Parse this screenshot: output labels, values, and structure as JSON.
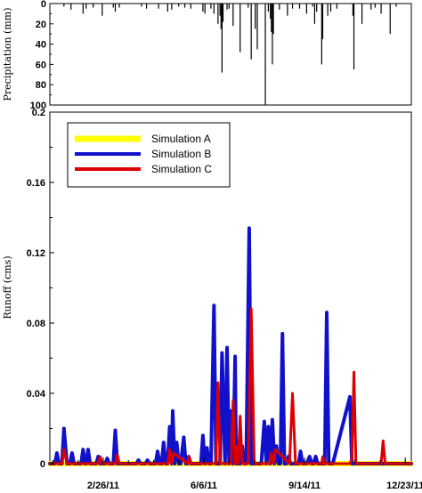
{
  "chart_data": [
    {
      "type": "bar",
      "ylabel": "Precipitation (mm)",
      "ylim": [
        100,
        0
      ],
      "y_reversed": true,
      "yticks": [
        0,
        20,
        40,
        60,
        80,
        100
      ],
      "grid": false,
      "x": [
        "2011-01-18",
        "2011-01-25",
        "2011-02-06",
        "2011-02-09",
        "2011-02-16",
        "2011-02-25",
        "2011-03-08",
        "2011-03-10",
        "2011-03-14",
        "2011-04-05",
        "2011-04-10",
        "2011-04-22",
        "2011-05-01",
        "2011-05-05",
        "2011-05-12",
        "2011-05-18",
        "2011-05-24",
        "2011-06-05",
        "2011-06-07",
        "2011-06-13",
        "2011-06-16",
        "2011-06-20",
        "2011-06-22",
        "2011-06-23",
        "2011-06-24",
        "2011-06-25",
        "2011-06-29",
        "2011-07-01",
        "2011-07-05",
        "2011-07-12",
        "2011-07-20",
        "2011-07-23",
        "2011-07-27",
        "2011-07-29",
        "2011-08-06",
        "2011-08-09",
        "2011-08-11",
        "2011-08-12",
        "2011-08-13",
        "2011-08-14",
        "2011-08-20",
        "2011-08-28",
        "2011-09-02",
        "2011-09-09",
        "2011-09-16",
        "2011-09-22",
        "2011-09-24",
        "2011-09-26",
        "2011-10-01",
        "2011-10-02",
        "2011-10-07",
        "2011-10-10",
        "2011-10-16",
        "2011-11-01",
        "2011-11-02",
        "2011-11-10",
        "2011-11-19",
        "2011-11-23",
        "2011-11-29",
        "2011-12-08",
        "2011-12-14"
      ],
      "values": [
        3,
        6,
        10,
        5,
        4,
        12,
        4,
        8,
        4,
        3,
        5,
        5,
        8,
        6,
        3,
        4,
        5,
        8,
        10,
        5,
        10,
        20,
        12,
        25,
        68,
        18,
        6,
        5,
        22,
        48,
        4,
        55,
        25,
        45,
        100,
        8,
        15,
        28,
        60,
        30,
        6,
        12,
        5,
        5,
        10,
        3,
        20,
        8,
        60,
        35,
        12,
        8,
        5,
        12,
        65,
        20,
        6,
        4,
        10,
        30,
        3
      ]
    },
    {
      "type": "line",
      "ylabel": "Runoff (cms)",
      "ylim": [
        0,
        0.2
      ],
      "yticks": [
        0,
        0.04,
        0.08,
        0.12,
        0.16,
        0.2
      ],
      "xticks": [
        "2/26/11",
        "6/6/11",
        "9/14/11",
        "12/23/11"
      ],
      "xlim": [
        "2011-01-04",
        "2011-12-29"
      ],
      "legend": "top-left",
      "grid": false,
      "colors": {
        "Simulation A": "#ffff00",
        "Simulation B": "#1111cc",
        "Simulation C": "#dd0000"
      },
      "series": [
        {
          "name": "Simulation A",
          "x": [
            "2011-01-04",
            "2011-12-29"
          ],
          "values": [
            0.0,
            0.0
          ]
        },
        {
          "name": "Simulation B",
          "x": [
            "2011-01-04",
            "2011-01-09",
            "2011-01-11",
            "2011-01-13",
            "2011-01-16",
            "2011-01-18",
            "2011-01-21",
            "2011-01-24",
            "2011-01-26",
            "2011-01-28",
            "2011-02-04",
            "2011-02-06",
            "2011-02-08",
            "2011-02-09",
            "2011-02-11",
            "2011-02-13",
            "2011-02-19",
            "2011-02-21",
            "2011-02-23",
            "2011-02-28",
            "2011-03-02",
            "2011-03-04",
            "2011-03-08",
            "2011-03-10",
            "2011-03-12",
            "2011-03-31",
            "2011-04-02",
            "2011-04-04",
            "2011-04-09",
            "2011-04-11",
            "2011-04-13",
            "2011-04-19",
            "2011-04-21",
            "2011-04-23",
            "2011-04-25",
            "2011-04-27",
            "2011-04-29",
            "2011-05-01",
            "2011-05-03",
            "2011-05-05",
            "2011-05-06",
            "2011-05-08",
            "2011-05-10",
            "2011-05-12",
            "2011-05-14",
            "2011-05-17",
            "2011-05-19",
            "2011-05-21",
            "2011-05-22",
            "2011-05-24",
            "2011-05-26",
            "2011-06-03",
            "2011-06-05",
            "2011-06-07",
            "2011-06-09",
            "2011-06-11",
            "2011-06-13",
            "2011-06-16",
            "2011-06-18",
            "2011-06-20",
            "2011-06-22",
            "2011-06-24",
            "2011-06-27",
            "2011-06-29",
            "2011-07-01",
            "2011-07-03",
            "2011-07-05",
            "2011-07-07",
            "2011-07-08",
            "2011-07-10",
            "2011-07-12",
            "2011-07-14",
            "2011-07-16",
            "2011-07-18",
            "2011-07-21",
            "2011-07-23",
            "2011-07-25",
            "2011-07-27",
            "2011-07-29",
            "2011-07-31",
            "2011-08-02",
            "2011-08-05",
            "2011-08-07",
            "2011-08-09",
            "2011-08-11",
            "2011-08-13",
            "2011-08-15",
            "2011-08-17",
            "2011-08-19",
            "2011-08-21",
            "2011-08-23",
            "2011-08-25",
            "2011-08-27",
            "2011-08-29",
            "2011-08-31",
            "2011-09-02",
            "2011-09-06",
            "2011-09-08",
            "2011-09-10",
            "2011-09-12",
            "2011-09-14",
            "2011-09-16",
            "2011-09-19",
            "2011-09-21",
            "2011-09-23",
            "2011-09-25",
            "2011-09-27",
            "2011-09-29",
            "2011-10-01",
            "2011-10-04",
            "2011-10-06",
            "2011-10-08",
            "2011-10-10",
            "2011-10-12",
            "2011-10-29",
            "2011-10-31",
            "2011-11-02",
            "2011-11-04",
            "2011-11-06",
            "2011-11-08",
            "2011-11-10",
            "2011-11-12",
            "2011-11-14",
            "2011-11-16",
            "2011-11-18",
            "2011-11-21",
            "2011-11-23",
            "2011-11-25",
            "2011-11-27",
            "2011-11-29",
            "2011-12-01",
            "2011-12-03",
            "2011-12-12",
            "2011-12-14",
            "2011-12-16",
            "2011-12-18",
            "2011-12-29"
          ],
          "values": [
            0,
            0,
            0.006,
            0,
            0,
            0.02,
            0,
            0,
            0.006,
            0,
            0,
            0.008,
            0,
            0,
            0.008,
            0,
            0,
            0.004,
            0,
            0,
            0.003,
            0,
            0,
            0.019,
            0,
            0,
            0.002,
            0,
            0,
            0.002,
            0,
            0,
            0.007,
            0,
            0,
            0.012,
            0,
            0,
            0.021,
            0,
            0.03,
            0,
            0.012,
            0,
            0,
            0.015,
            0,
            0,
            0.004,
            0,
            0,
            0,
            0.016,
            0,
            0.009,
            0,
            0,
            0.09,
            0,
            0,
            0,
            0.063,
            0,
            0.066,
            0,
            0.03,
            0,
            0.061,
            0,
            0,
            0,
            0.01,
            0,
            0,
            0.134,
            0,
            0,
            0,
            0,
            0,
            0,
            0.024,
            0,
            0.021,
            0,
            0.025,
            0,
            0.01,
            0,
            0,
            0.074,
            0,
            0,
            0.004,
            0,
            0,
            0,
            0,
            0.007,
            0,
            0,
            0,
            0.004,
            0,
            0,
            0.004,
            0,
            0,
            0,
            0,
            0.086,
            0,
            0,
            0,
            0.038,
            0,
            0,
            0,
            0,
            0,
            0,
            0,
            0,
            0,
            0,
            0,
            0,
            0,
            0,
            0,
            0,
            0,
            0,
            0,
            0,
            0,
            0
          ],
          "note": ""
        },
        {
          "name": "Simulation C",
          "x": [
            "2011-01-04",
            "2011-01-16",
            "2011-01-18",
            "2011-01-21",
            "2011-02-21",
            "2011-02-23",
            "2011-02-25",
            "2011-03-10",
            "2011-03-12",
            "2011-03-14",
            "2011-05-01",
            "2011-05-03",
            "2011-05-05",
            "2011-05-07",
            "2011-05-21",
            "2011-05-22",
            "2011-05-24",
            "2011-06-18",
            "2011-06-20",
            "2011-06-22",
            "2011-06-24",
            "2011-07-03",
            "2011-07-05",
            "2011-07-07",
            "2011-07-09",
            "2011-07-10",
            "2011-07-12",
            "2011-07-14",
            "2011-07-20",
            "2011-07-23",
            "2011-07-26",
            "2011-08-10",
            "2011-08-12",
            "2011-08-14",
            "2011-08-16",
            "2011-08-30",
            "2011-09-02",
            "2011-09-05",
            "2011-10-01",
            "2011-10-02",
            "2011-10-04",
            "2011-10-29",
            "2011-10-31",
            "2011-11-02",
            "2011-11-04",
            "2011-11-29",
            "2011-12-01",
            "2011-12-03",
            "2011-12-29"
          ],
          "values": [
            0,
            0,
            0.008,
            0,
            0,
            0.004,
            0,
            0,
            0.005,
            0,
            0,
            0.008,
            0,
            0.006,
            0,
            0.004,
            0,
            0,
            0.046,
            0,
            0,
            0,
            0.036,
            0,
            0.01,
            0,
            0.027,
            0,
            0,
            0.088,
            0,
            0,
            0.006,
            0,
            0.008,
            0,
            0.04,
            0,
            0,
            0.004,
            0,
            0,
            0.003,
            0.052,
            0,
            0,
            0.013,
            0,
            0
          ]
        }
      ]
    }
  ]
}
